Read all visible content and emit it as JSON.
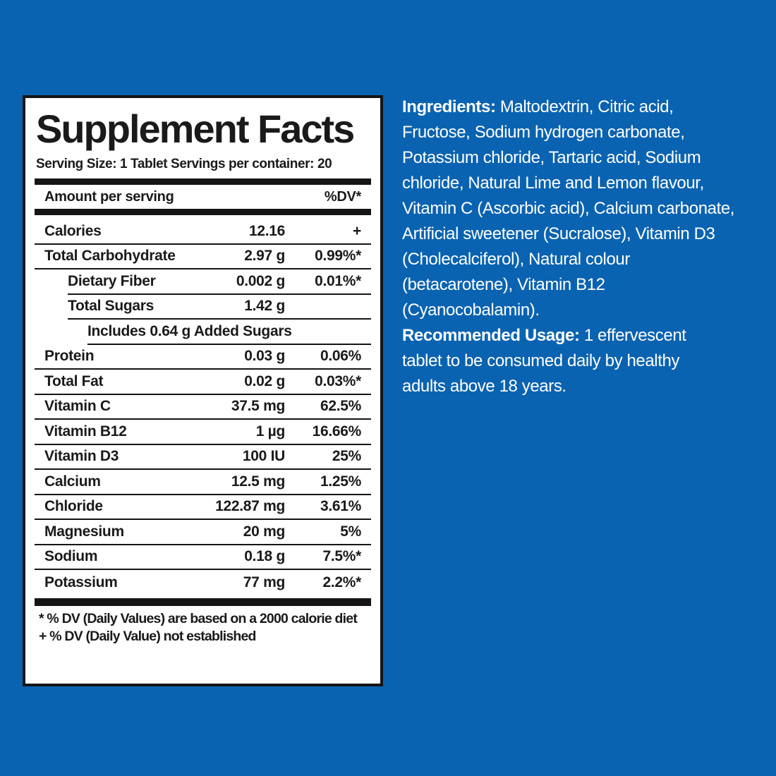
{
  "background_color": "#0a63b1",
  "label_panel": {
    "title": "Supplement Facts",
    "serving_line": "Serving Size: 1 Tablet Servings per container: 20",
    "columns": {
      "amount_header": "Amount per serving",
      "dv_header": "%DV*"
    },
    "rows": [
      {
        "name": "Calories",
        "amount": "12.16",
        "dv": "+",
        "indent": 0
      },
      {
        "name": "Total Carbohydrate",
        "amount": "2.97 g",
        "dv": "0.99%*",
        "indent": 0
      },
      {
        "name": "Dietary Fiber",
        "amount": "0.002 g",
        "dv": "0.01%*",
        "indent": 1
      },
      {
        "name": "Total Sugars",
        "amount": "1.42 g",
        "dv": "",
        "indent": 1
      },
      {
        "name": "Includes 0.64 g Added Sugars",
        "amount": "",
        "dv": "",
        "indent": 2
      },
      {
        "name": "Protein",
        "amount": "0.03 g",
        "dv": "0.06%",
        "indent": 0
      },
      {
        "name": "Total Fat",
        "amount": "0.02 g",
        "dv": "0.03%*",
        "indent": 0
      },
      {
        "name": "Vitamin C",
        "amount": "37.5 mg",
        "dv": "62.5%",
        "indent": 0
      },
      {
        "name": "Vitamin B12",
        "amount": "1 µg",
        "dv": "16.66%",
        "indent": 0
      },
      {
        "name": "Vitamin D3",
        "amount": "100 IU",
        "dv": "25%",
        "indent": 0
      },
      {
        "name": "Calcium",
        "amount": "12.5 mg",
        "dv": "1.25%",
        "indent": 0
      },
      {
        "name": "Chloride",
        "amount": "122.87 mg",
        "dv": "3.61%",
        "indent": 0
      },
      {
        "name": "Magnesium",
        "amount": "20 mg",
        "dv": "5%",
        "indent": 0
      },
      {
        "name": "Sodium",
        "amount": "0.18 g",
        "dv": "7.5%*",
        "indent": 0
      },
      {
        "name": "Potassium",
        "amount": "77 mg",
        "dv": "2.2%*",
        "indent": 0
      }
    ],
    "footnotes": [
      "* % DV (Daily Values) are based on a 2000 calorie diet",
      "+ % DV (Daily Value) not established"
    ]
  },
  "info_panel": {
    "ingredients": {
      "label": "Ingredients:",
      "lines": [
        " Maltodextrin, Citric acid,",
        "Fructose, Sodium hydrogen carbonate,",
        "Potassium chloride, Tartaric acid, Sodium",
        "chloride, Natural Lime and Lemon flavour,",
        "Vitamin C (Ascorbic acid), Calcium carbonate,",
        "Artificial sweetener (Sucralose), Vitamin D3",
        "(Cholecalciferol), Natural colour",
        "(betacarotene), Vitamin B12",
        "(Cyanocobalamin)."
      ]
    },
    "usage": {
      "label": "Recommended Usage:",
      "lines": [
        " 1 effervescent",
        "tablet to be consumed daily by healthy",
        "adults above 18 years."
      ]
    }
  }
}
